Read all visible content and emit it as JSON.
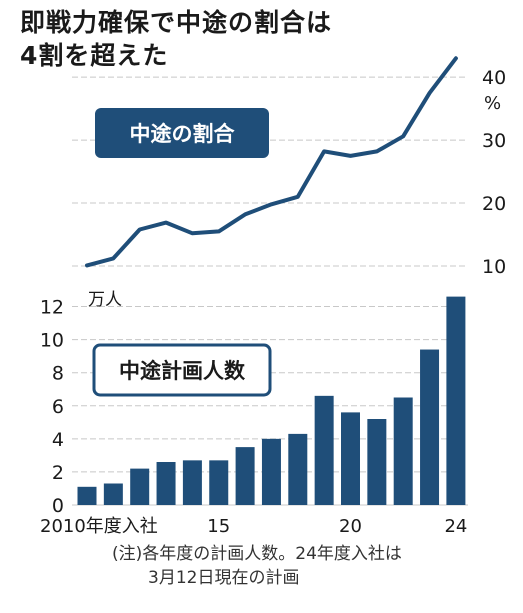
{
  "title": {
    "line1": "即戦力確保で中途の割合は",
    "line2": "4割を超えた"
  },
  "note": {
    "line1": "(注)各年度の計画人数。24年度入社は",
    "line2": "3月12日現在の計画"
  },
  "colors": {
    "line": "#1f4e79",
    "bar": "#1f4e79",
    "grid": "#c8c8c8",
    "label_bg": "#1f4e79",
    "label_text": "#ffffff"
  },
  "chart_data": [
    {
      "type": "line",
      "label_box": "中途の割合",
      "unit": "%",
      "x": [
        2010,
        2011,
        2012,
        2013,
        2014,
        2015,
        2016,
        2017,
        2018,
        2019,
        2020,
        2021,
        2022,
        2023,
        2024
      ],
      "values": [
        10.1,
        11.2,
        15.8,
        16.9,
        15.2,
        15.5,
        18.2,
        19.8,
        21.0,
        28.2,
        27.5,
        28.2,
        30.6,
        37.5,
        43.0
      ],
      "yticks": [
        "10",
        "20",
        "30",
        "40"
      ],
      "ylim": [
        10,
        44
      ],
      "grid": true
    },
    {
      "type": "bar",
      "label_box": "中途計画人数",
      "unit": "万人",
      "categories": [
        2010,
        2011,
        2012,
        2013,
        2014,
        2015,
        2016,
        2017,
        2018,
        2019,
        2020,
        2021,
        2022,
        2023,
        2024
      ],
      "values": [
        1.1,
        1.3,
        2.2,
        2.6,
        2.7,
        2.7,
        3.5,
        4.0,
        4.3,
        6.6,
        5.6,
        5.2,
        6.5,
        9.4,
        12.6
      ],
      "xticks": [
        {
          "year": 2010,
          "label": "2010年度入社"
        },
        {
          "year": 2015,
          "label": "15"
        },
        {
          "year": 2020,
          "label": "20"
        },
        {
          "year": 2024,
          "label": "24"
        }
      ],
      "yticks": [
        "0",
        "2",
        "4",
        "6",
        "8",
        "10",
        "12"
      ],
      "ylim": [
        0,
        13
      ],
      "grid": true
    }
  ]
}
